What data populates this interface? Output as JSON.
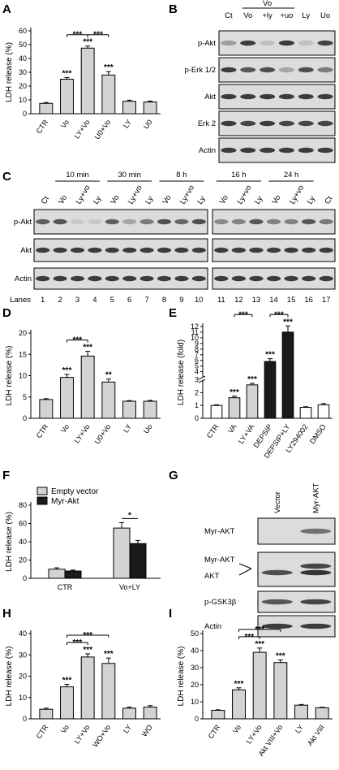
{
  "panel_letters": [
    "A",
    "B",
    "C",
    "D",
    "E",
    "F",
    "G",
    "H",
    "I"
  ],
  "colors": {
    "bar_light": "#d3d3d3",
    "bar_dark": "#1a1a1a",
    "bar_white": "#ffffff",
    "band": "#2a2a2a",
    "blot_bg": "#dcdcdc"
  },
  "chart_data": [
    {
      "panel": "A",
      "type": "bar",
      "ylabel": "LDH release (%)",
      "ylim": [
        0,
        60
      ],
      "yticks": [
        0,
        10,
        20,
        30,
        40,
        50,
        60
      ],
      "categories": [
        "CTR",
        "Vo",
        "LY+Vo",
        "U0+Vo",
        "LY",
        "U0"
      ],
      "values": [
        7.5,
        25,
        47.5,
        28,
        9,
        8.5
      ],
      "errors": [
        0.6,
        1.2,
        1.5,
        2.5,
        0.8,
        0.7
      ],
      "colors": [
        "light",
        "light",
        "light",
        "light",
        "light",
        "light"
      ],
      "stars": [
        "",
        "***",
        "***",
        "***",
        "",
        ""
      ],
      "brackets": [
        {
          "from": 1,
          "to": 2,
          "level": 0,
          "label": "***"
        },
        {
          "from": 2,
          "to": 3,
          "level": 0,
          "label": "***"
        }
      ]
    },
    {
      "panel": "D",
      "type": "bar",
      "ylabel": "LDH release (%)",
      "ylim": [
        0,
        20
      ],
      "yticks": [
        0,
        5,
        10,
        15,
        20
      ],
      "categories": [
        "CTR",
        "Vo",
        "LY+Vo",
        "U0+Vo",
        "LY",
        "Uo"
      ],
      "values": [
        4.4,
        9.6,
        14.6,
        8.5,
        4,
        4
      ],
      "errors": [
        0.2,
        0.7,
        1.1,
        0.7,
        0.15,
        0.2
      ],
      "colors": [
        "light",
        "light",
        "light",
        "light",
        "light",
        "light"
      ],
      "stars": [
        "",
        "***",
        "***",
        "**",
        "",
        ""
      ],
      "brackets": [
        {
          "from": 1,
          "to": 2,
          "level": 0,
          "label": "***"
        }
      ]
    },
    {
      "panel": "E",
      "type": "bar",
      "ylabel": "LDH release (fold)",
      "ylim": [
        0,
        12
      ],
      "yticks": [
        0,
        1,
        2,
        3,
        4,
        5,
        6,
        7,
        8,
        9,
        10,
        11,
        12
      ],
      "axis_break": true,
      "categories": [
        "CTR",
        "VA",
        "LY+VA",
        "DEPSIP",
        "DEPSIP+LY",
        "LY294002",
        "DMSO"
      ],
      "values": [
        1,
        1.6,
        2.6,
        5.8,
        11,
        0.85,
        1.05
      ],
      "errors": [
        0.05,
        0.12,
        0.12,
        0.5,
        1.1,
        0.05,
        0.1
      ],
      "colors": [
        "white",
        "light",
        "light",
        "dark",
        "dark",
        "white",
        "white"
      ],
      "stars": [
        "",
        "***",
        "***",
        "***",
        "***",
        "",
        ""
      ],
      "brackets": [
        {
          "from": 1,
          "to": 2,
          "level": 0,
          "label": "***"
        },
        {
          "from": 3,
          "to": 4,
          "level": 0,
          "label": "***"
        }
      ]
    },
    {
      "panel": "F",
      "type": "bar",
      "ylabel": "LDH release (%)",
      "ylim": [
        0,
        80
      ],
      "yticks": [
        0,
        20,
        40,
        60,
        80
      ],
      "categories": [
        "CTR",
        "Vo+LY"
      ],
      "series": [
        {
          "name": "Empty vector",
          "values": [
            10,
            55
          ],
          "errors": [
            1.5,
            6
          ],
          "color": "light"
        },
        {
          "name": "Myr-Akt",
          "values": [
            8,
            38
          ],
          "errors": [
            1,
            3.5
          ],
          "color": "dark"
        }
      ],
      "legend": "top-left",
      "brackets": [
        {
          "cat": 1,
          "label": "*"
        }
      ]
    },
    {
      "panel": "H",
      "type": "bar",
      "ylabel": "LDH release (%)",
      "ylim": [
        0,
        40
      ],
      "yticks": [
        0,
        10,
        20,
        30,
        40
      ],
      "categories": [
        "CTR",
        "Vo",
        "LY+Vo",
        "WO+Vo",
        "LY",
        "WO"
      ],
      "values": [
        4.5,
        15,
        29,
        26,
        5,
        5.5
      ],
      "errors": [
        0.5,
        1.2,
        1.5,
        2.5,
        0.5,
        0.7
      ],
      "colors": [
        "light",
        "light",
        "light",
        "light",
        "light",
        "light"
      ],
      "stars": [
        "",
        "***",
        "***",
        "***",
        "",
        ""
      ],
      "brackets": [
        {
          "from": 1,
          "to": 2,
          "level": 0,
          "label": "***"
        },
        {
          "from": 1,
          "to": 3,
          "level": 1,
          "label": "***"
        }
      ]
    },
    {
      "panel": "I",
      "type": "bar",
      "ylabel": "LDH release (%)",
      "ylim": [
        0,
        50
      ],
      "yticks": [
        0,
        10,
        20,
        30,
        40,
        50
      ],
      "categories": [
        "CTR",
        "Vo",
        "LY+Vo",
        "Akt VIII+Vo",
        "LY",
        "Akt VIII"
      ],
      "values": [
        5,
        17,
        39,
        33,
        8,
        6.5
      ],
      "errors": [
        0.3,
        1.2,
        2.5,
        1.5,
        0.4,
        0.3
      ],
      "colors": [
        "light",
        "light",
        "light",
        "light",
        "light",
        "light"
      ],
      "stars": [
        "",
        "***",
        "***",
        "***",
        "",
        ""
      ],
      "brackets": [
        {
          "from": 1,
          "to": 2,
          "level": 0,
          "label": "***"
        },
        {
          "from": 1,
          "to": 3,
          "level": 1,
          "label": "***"
        }
      ]
    }
  ],
  "blot_B": {
    "lanes": [
      "Ct",
      "Vo",
      "+ly",
      "+uo",
      "Ly",
      "Uo"
    ],
    "group_label": "Vo",
    "rows": [
      {
        "label": "p-Akt",
        "bands": [
          0.35,
          0.9,
          0.15,
          0.9,
          0.15,
          0.85
        ]
      },
      {
        "label": "p-Erk 1/2",
        "bands": [
          0.9,
          0.75,
          0.8,
          0.3,
          0.8,
          0.55
        ]
      },
      {
        "label": "Akt",
        "bands": [
          0.9,
          0.9,
          0.9,
          0.9,
          0.9,
          0.9
        ]
      },
      {
        "label": "Erk 2",
        "bands": [
          0.9,
          0.85,
          0.9,
          0.85,
          0.85,
          0.85
        ]
      },
      {
        "label": "Actin",
        "bands": [
          0.9,
          0.9,
          0.9,
          0.9,
          0.9,
          0.9
        ]
      }
    ]
  },
  "blot_C": {
    "times_left": [
      "10 min",
      "30 min",
      "8 h"
    ],
    "times_right": [
      "16 h",
      "24 h"
    ],
    "lanes": [
      "Ct",
      "Vo",
      "Ly+vo",
      "Ly",
      "Vo",
      "Ly+vo",
      "Ly",
      "Vo",
      "Ly+vo",
      "Ly",
      "Vo",
      "Ly+vo",
      "Ly",
      "Vo",
      "Ly+vo",
      "Ly",
      "Ct"
    ],
    "lane_numbers_label": "Lanes",
    "lane_numbers": [
      "1",
      "2",
      "3",
      "4",
      "5",
      "6",
      "7",
      "8",
      "9",
      "10",
      "11",
      "12",
      "13",
      "14",
      "15",
      "16",
      "17"
    ],
    "rows": [
      {
        "label": "p-Akt",
        "bands": [
          0.7,
          0.75,
          0.1,
          0.1,
          0.7,
          0.3,
          0.55,
          0.8,
          0.65,
          0.8,
          0.45,
          0.5,
          0.75,
          0.5,
          0.5,
          0.75,
          0.55
        ]
      },
      {
        "label": "Akt",
        "bands": [
          0.9,
          0.9,
          0.9,
          0.9,
          0.9,
          0.9,
          0.9,
          0.9,
          0.9,
          0.9,
          0.9,
          0.9,
          0.9,
          0.9,
          0.9,
          0.9,
          0.9
        ]
      },
      {
        "label": "Actin",
        "bands": [
          0.9,
          0.9,
          0.9,
          0.9,
          0.9,
          0.9,
          0.9,
          0.9,
          0.9,
          0.9,
          0.9,
          0.9,
          0.9,
          0.9,
          0.9,
          0.9,
          0.9
        ]
      }
    ]
  },
  "blot_G": {
    "lanes": [
      "Vector",
      "Myr-AKT"
    ],
    "rows": [
      {
        "label": "Myr-AKT",
        "bands": [
          0,
          0.6
        ]
      },
      {
        "label": "Myr-AKT",
        "label2": "AKT",
        "bands": [
          0.8,
          0.95
        ]
      },
      {
        "label": "p-GSK3β",
        "bands": [
          0.75,
          0.85
        ]
      },
      {
        "label": "Actin",
        "bands": [
          0.9,
          0.9
        ]
      }
    ]
  }
}
